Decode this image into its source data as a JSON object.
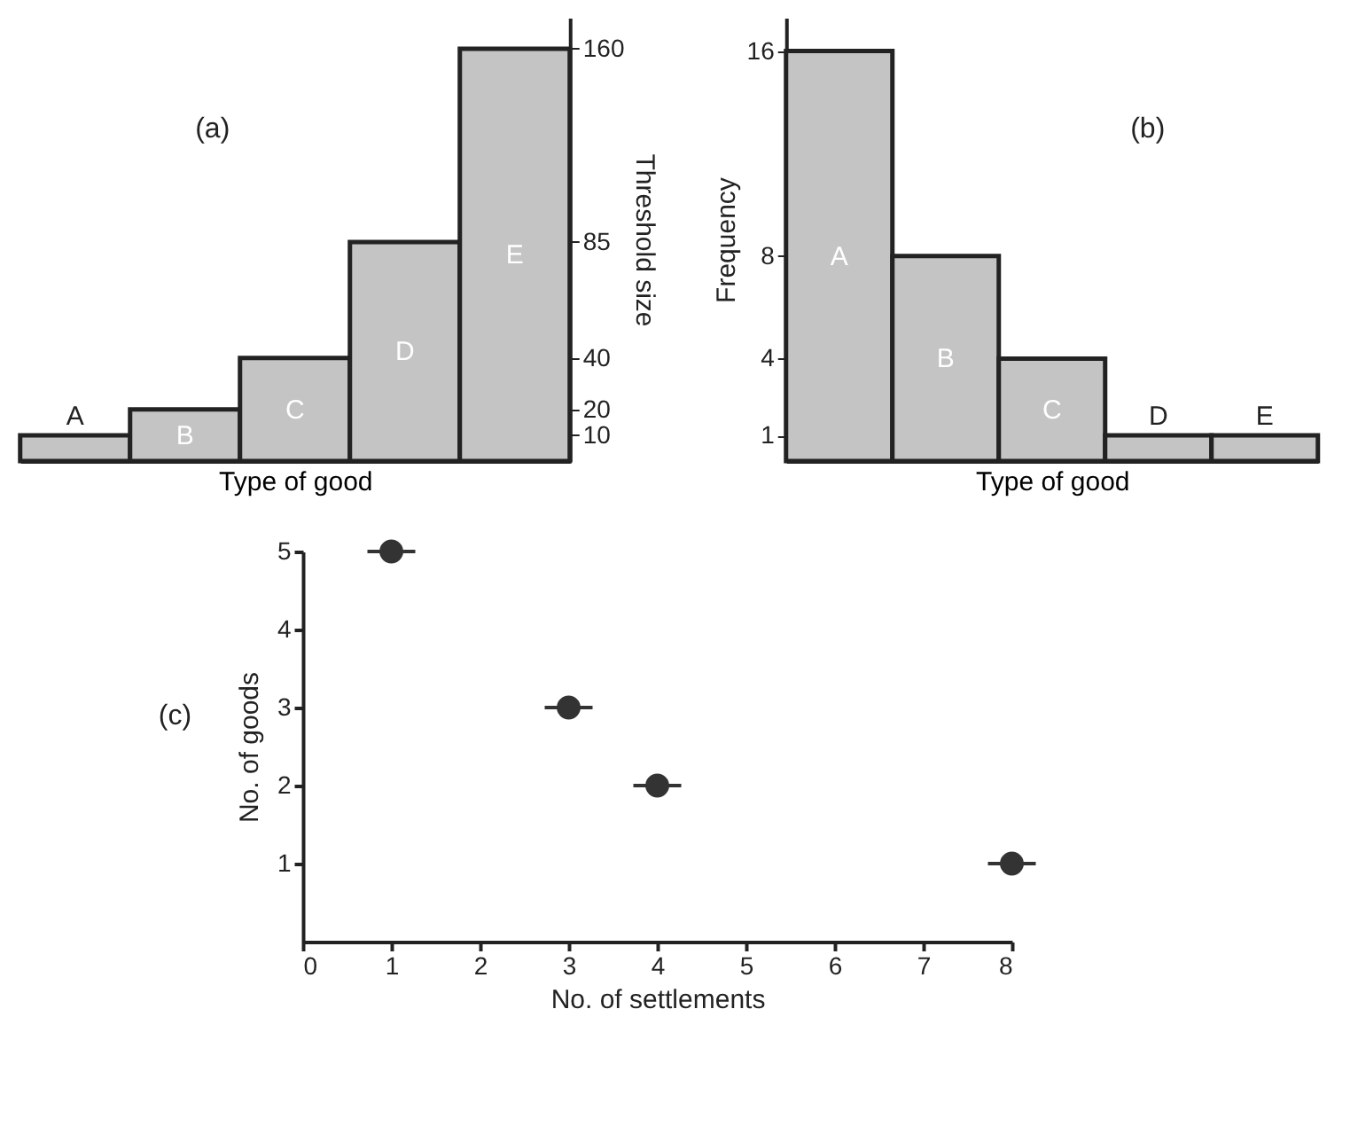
{
  "chart_data": [
    {
      "type": "bar",
      "title": "(a)",
      "categories": [
        "A",
        "B",
        "C",
        "D",
        "E"
      ],
      "xlabel": "Type of good",
      "y2label": "Threshold size",
      "series": [
        {
          "color": "#c4c4c4",
          "values": [
            10,
            20,
            40,
            85,
            160
          ],
          "axis": "y2"
        }
      ],
      "y2lim": [
        0,
        172
      ],
      "y2ticks": [
        10,
        20,
        40,
        85,
        160
      ],
      "grid": false
    },
    {
      "type": "bar",
      "title": "(b)",
      "categories": [
        "A",
        "B",
        "C",
        "D",
        "E"
      ],
      "xlabel": "Type of good",
      "ylabel": "Frequency",
      "series": [
        {
          "color": "#c4c4c4",
          "values": [
            16,
            8,
            4,
            1,
            1
          ]
        }
      ],
      "ylim": [
        0,
        17.3
      ],
      "yticks": [
        1,
        4,
        8,
        16
      ],
      "grid": false
    },
    {
      "type": "scatter",
      "title": "(c)",
      "xlabel": "No. of settlements",
      "ylabel": "No. of goods",
      "x": [
        1,
        3,
        4,
        8
      ],
      "series": [
        {
          "color": "#333333",
          "values": [
            5,
            3,
            2,
            1
          ],
          "xerrors": [
            0.27,
            0.27,
            0.27,
            0.27
          ]
        }
      ],
      "xlim": [
        0,
        8
      ],
      "xticks": [
        0,
        1,
        2,
        3,
        4,
        5,
        6,
        7,
        8
      ],
      "ylim": [
        0,
        5
      ],
      "yticks": [
        1,
        2,
        3,
        4,
        5
      ],
      "marker": "circle",
      "grid": false
    }
  ]
}
